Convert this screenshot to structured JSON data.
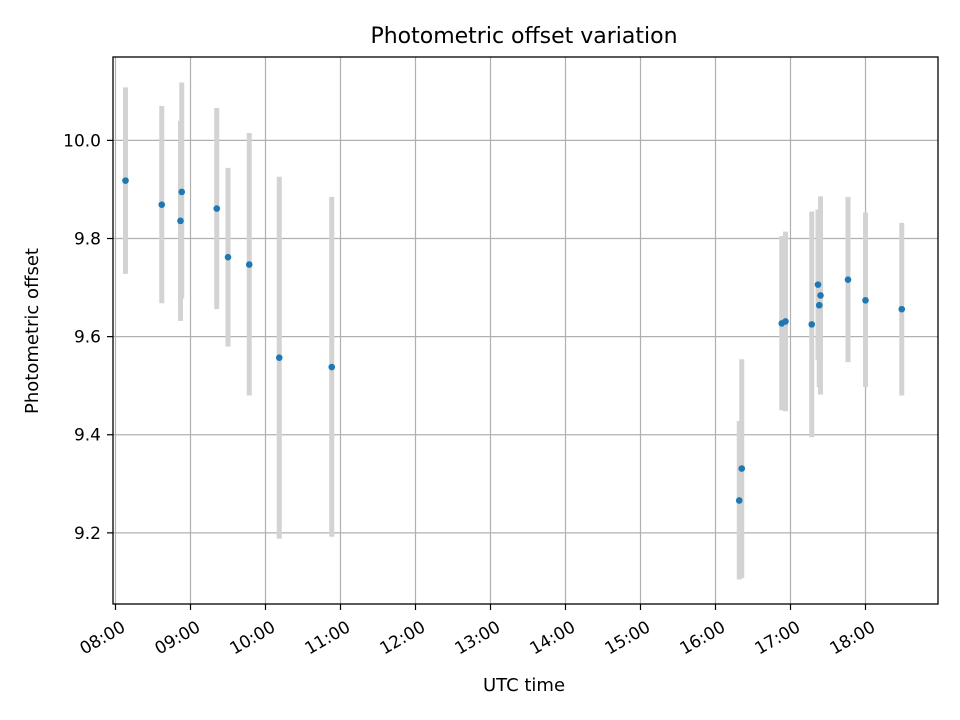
{
  "chart_data": {
    "type": "scatter",
    "title": "Photometric offset variation",
    "xlabel": "UTC time",
    "ylabel": "Photometric offset",
    "grid": true,
    "xlim": [
      "07:58",
      "18:58"
    ],
    "ylim": [
      9.055,
      10.17
    ],
    "x_ticks": [
      "08:00",
      "09:00",
      "10:00",
      "11:00",
      "12:00",
      "13:00",
      "14:00",
      "15:00",
      "16:00",
      "17:00",
      "18:00"
    ],
    "y_ticks": [
      9.2,
      9.4,
      9.6,
      9.8,
      10.0
    ],
    "y_tick_labels": [
      "9.2",
      "9.4",
      "9.6",
      "9.8",
      "10.0"
    ],
    "marker_color": "#1f77b4",
    "errorbar_color": "#d3d3d3",
    "series": [
      {
        "points": [
          {
            "x": "08:08",
            "y": 9.918,
            "err_low": 9.728,
            "err_high": 10.108
          },
          {
            "x": "08:37",
            "y": 9.869,
            "err_low": 9.668,
            "err_high": 10.07
          },
          {
            "x": "08:52",
            "y": 9.836,
            "err_low": 9.632,
            "err_high": 10.04
          },
          {
            "x": "08:53",
            "y": 9.895,
            "err_low": 9.678,
            "err_high": 10.118
          },
          {
            "x": "09:21",
            "y": 9.861,
            "err_low": 9.656,
            "err_high": 10.066
          },
          {
            "x": "09:30",
            "y": 9.762,
            "err_low": 9.58,
            "err_high": 9.944
          },
          {
            "x": "09:47",
            "y": 9.747,
            "err_low": 9.48,
            "err_high": 10.015
          },
          {
            "x": "10:11",
            "y": 9.557,
            "err_low": 9.188,
            "err_high": 9.926
          },
          {
            "x": "10:53",
            "y": 9.538,
            "err_low": 9.192,
            "err_high": 9.885
          },
          {
            "x": "16:19",
            "y": 9.266,
            "err_low": 9.105,
            "err_high": 9.428
          },
          {
            "x": "16:21",
            "y": 9.331,
            "err_low": 9.108,
            "err_high": 9.554
          },
          {
            "x": "16:53",
            "y": 9.627,
            "err_low": 9.45,
            "err_high": 9.805
          },
          {
            "x": "16:56",
            "y": 9.631,
            "err_low": 9.448,
            "err_high": 9.814
          },
          {
            "x": "17:17",
            "y": 9.625,
            "err_low": 9.395,
            "err_high": 9.855
          },
          {
            "x": "17:22",
            "y": 9.706,
            "err_low": 9.553,
            "err_high": 9.859
          },
          {
            "x": "17:23",
            "y": 9.664,
            "err_low": 9.497,
            "err_high": 9.83
          },
          {
            "x": "17:24",
            "y": 9.684,
            "err_low": 9.482,
            "err_high": 9.886
          },
          {
            "x": "17:46",
            "y": 9.716,
            "err_low": 9.548,
            "err_high": 9.885
          },
          {
            "x": "18:00",
            "y": 9.674,
            "err_low": 9.497,
            "err_high": 9.853
          },
          {
            "x": "18:29",
            "y": 9.656,
            "err_low": 9.48,
            "err_high": 9.832
          }
        ]
      }
    ]
  }
}
